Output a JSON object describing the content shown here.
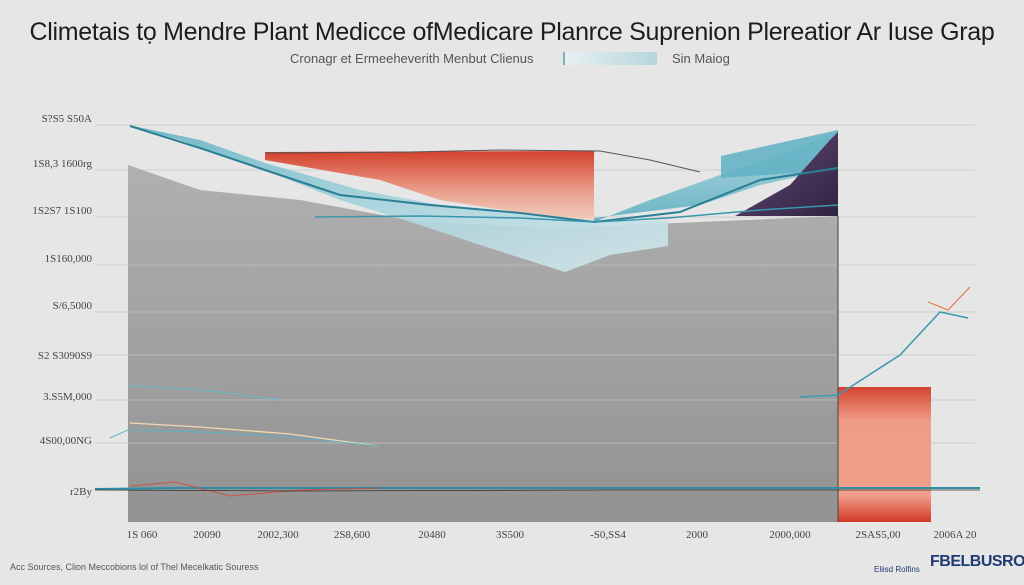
{
  "header": {
    "title": "Climetais tọ Mendre Plant Medicce ofMedicare Planrce Suprenion Plereatior Ar Iuse Grap",
    "subtitle": "Cronagr et Ermeeheverith Menbut Clienus",
    "legend_label": "Sin Maiog"
  },
  "footer": {
    "source": "Acc Sources, Clion Meccobions lol of Thel Mecelkatic Souress",
    "logo": "FBELBUSRO",
    "logo_sub": "Eliisd Rolfins"
  },
  "chart_data": {
    "type": "area",
    "title": "Climetais tọ Mendre Plant Medicce ofMedicare Planrce Suprenion Plereatior Ar Iuse Grap",
    "subtitle": "Cronagr et Ermeeheverith Menbut Clienus",
    "xlabel": "",
    "ylabel": "",
    "grid": true,
    "legend_placement": "top-center",
    "y_tick_labels": [
      "S?S5 S50A",
      "1S8,3 1600rg",
      "1S2S7 1S100",
      "1S160,000",
      "S/6,5000",
      "S2 S3090S9",
      "3.S5M,000",
      "4S00,00NG",
      "r2By"
    ],
    "x_tick_labels": [
      "1S 060",
      "20090",
      "2002,300",
      "2S8,600",
      "20480",
      "3S500",
      "-S0,SS4",
      "2000",
      "2000,000",
      "2SAS5,00",
      "2006A 20"
    ],
    "x": [
      0,
      1,
      2,
      3,
      4,
      5,
      6,
      7,
      8,
      9,
      10
    ],
    "ylim": [
      0,
      8
    ],
    "series": [
      {
        "name": "Sin Maiog",
        "values": [
          8,
          7.6,
          7.2,
          6.9,
          6.6,
          6.7,
          6.9,
          7.3,
          7.7,
          8.1,
          8.2
        ]
      },
      {
        "values": [
          6.2,
          6.1,
          6.0,
          6.1,
          6.4,
          6.3,
          6.0,
          6.1,
          6.5,
          6.9,
          7.3
        ]
      },
      {
        "values": [
          0.35,
          0.4,
          0.3,
          0.35,
          0.4,
          0.4,
          0.4,
          0.4,
          0.4,
          0.4,
          0.4
        ]
      }
    ],
    "colors": {
      "area_fill": "#9c9c9c",
      "teal": "#6fb6c6",
      "teal_dark": "#2f8ea6",
      "red": "#d6452f",
      "purple": "#4a3466"
    }
  }
}
